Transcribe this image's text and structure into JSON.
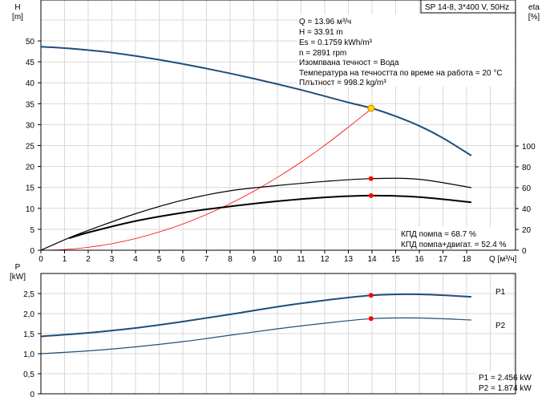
{
  "title_box": "SP 14-8, 3*400 V, 50Hz",
  "info_lines": [
    "Q = 13.96 м³/ч",
    "H = 33.91 m",
    "Es = 0.1759 kWh/m³",
    "n = 2891 rpm",
    "Изомпвана течност = Вода",
    "Температура на течността по време на работа = 20 °C",
    "Плътност = 998.2 kg/m³"
  ],
  "efficiency_lines": [
    "КПД помпа = 68.7 %",
    "КПД помпа+двигат. = 52.4 %"
  ],
  "power_lines": [
    "P1 = 2.456 kW",
    "P2 = 1.874 kW"
  ],
  "colors": {
    "head": "#1f4e79",
    "system": "#ff0000",
    "eta": "#000000",
    "power": "#1f4e79",
    "duty_point": "#ff0000",
    "duty_point_head": "#ffd700",
    "grid": "#d9d9d9"
  },
  "chart_data": [
    {
      "type": "line",
      "xlabel": "Q [м³/ч]",
      "ylabel": "H [m]",
      "y2label": "eta [%]",
      "xlim": [
        0,
        20
      ],
      "ylim": [
        0,
        60
      ],
      "y2lim": [
        0,
        240
      ],
      "xticks": [
        "0",
        "1",
        "2",
        "3",
        "4",
        "5",
        "6",
        "7",
        "8",
        "9",
        "10",
        "11",
        "12",
        "13",
        "14",
        "15",
        "16",
        "17",
        "18"
      ],
      "yticks": [
        "0",
        "5",
        "10",
        "15",
        "20",
        "25",
        "30",
        "35",
        "40",
        "45",
        "50"
      ],
      "y2ticks": [
        "0",
        "20",
        "40",
        "60",
        "80",
        "100"
      ],
      "grid": true,
      "series": [
        {
          "key": "head",
          "axis": "y",
          "x": [
            0,
            1.2,
            3,
            5,
            7,
            9,
            11,
            13,
            14,
            15,
            16,
            17,
            18.2
          ],
          "y": [
            48.6,
            48.2,
            47.2,
            45.5,
            43.4,
            41,
            38.3,
            35.3,
            33.91,
            32,
            29.7,
            26.8,
            22.6
          ]
        },
        {
          "key": "system",
          "axis": "y",
          "x": [
            0,
            1,
            2,
            3,
            4,
            5,
            6,
            7,
            8,
            9,
            10,
            11,
            12,
            13,
            14
          ],
          "y": [
            0,
            0.17,
            0.7,
            1.56,
            2.78,
            4.35,
            6.26,
            8.52,
            11.13,
            14.08,
            17.4,
            21.05,
            25.05,
            29.4,
            33.91
          ]
        },
        {
          "key": "eta_pump",
          "axis": "y2",
          "x": [
            0,
            1.2,
            2,
            4,
            6,
            8,
            10,
            12,
            14,
            16,
            18.2
          ],
          "y": [
            0,
            12,
            19,
            35,
            48,
            57,
            62,
            66,
            68.7,
            68,
            60
          ],
          "thick": false
        },
        {
          "key": "eta_total",
          "axis": "y2",
          "x": [
            1.2,
            2,
            4,
            6,
            8,
            10,
            12,
            14,
            16,
            18.2
          ],
          "y": [
            11.5,
            17,
            28,
            36,
            42,
            47,
            50.7,
            52.4,
            51,
            46
          ],
          "thick": true
        }
      ],
      "duty_point": {
        "x": 13.96,
        "head": 33.91,
        "eta_pump": 68.7,
        "eta_total": 52.4
      }
    },
    {
      "type": "line",
      "ylabel": "P [kW]",
      "xlim": [
        0,
        20
      ],
      "ylim": [
        0,
        3
      ],
      "yticks": [
        "0",
        "0,5",
        "1,0",
        "1,5",
        "2,0",
        "2,5"
      ],
      "grid": true,
      "series": [
        {
          "name": "P1",
          "x": [
            0,
            2,
            4,
            6,
            8,
            10,
            12,
            14,
            16,
            18.2
          ],
          "y": [
            1.43,
            1.52,
            1.64,
            1.8,
            1.98,
            2.17,
            2.33,
            2.456,
            2.48,
            2.42
          ],
          "thick": true
        },
        {
          "name": "P2",
          "x": [
            0,
            2,
            4,
            6,
            8,
            10,
            12,
            14,
            16,
            18.2
          ],
          "y": [
            1.0,
            1.07,
            1.17,
            1.3,
            1.46,
            1.62,
            1.76,
            1.874,
            1.89,
            1.84
          ],
          "thick": false
        }
      ],
      "duty_point": {
        "x": 13.96,
        "P1": 2.456,
        "P2": 1.874
      }
    }
  ]
}
